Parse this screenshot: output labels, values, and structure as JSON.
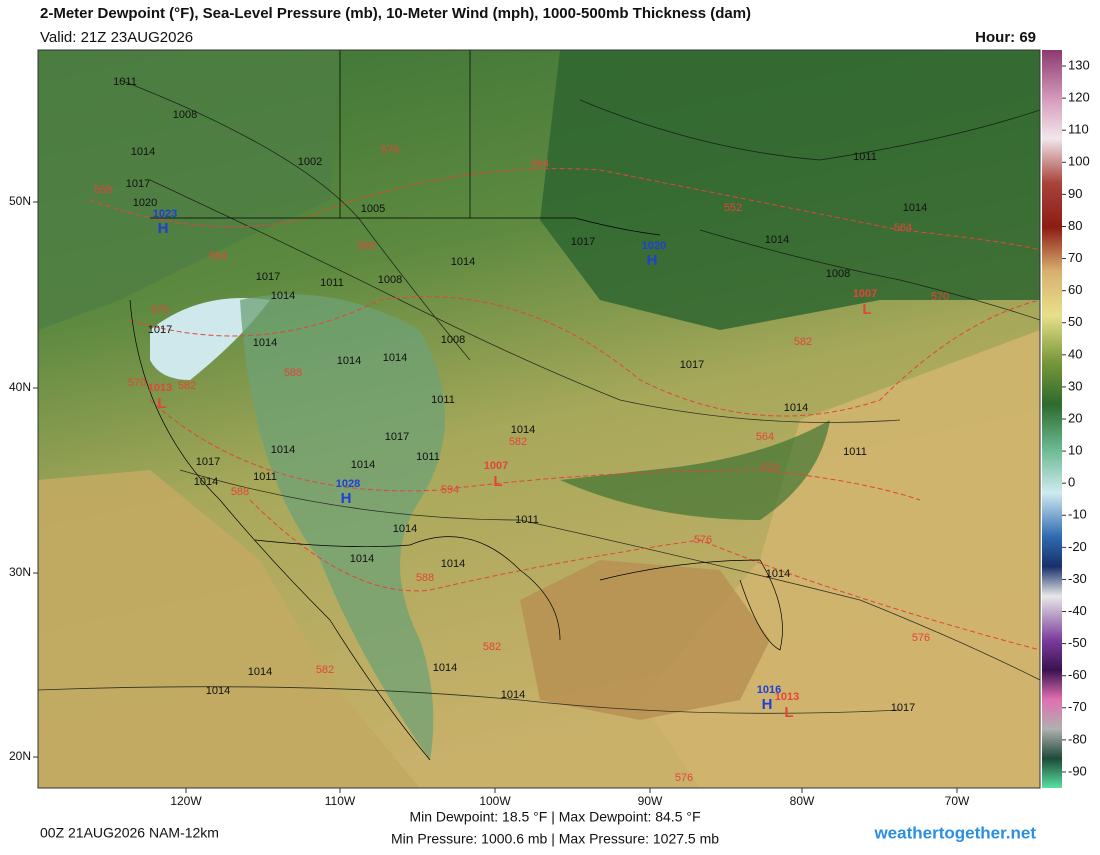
{
  "header": {
    "title": "2-Meter Dewpoint (°F), Sea-Level Pressure (mb), 10-Meter Wind (mph), 1000-500mb Thickness (dam)",
    "valid": "Valid: 21Z 23AUG2026",
    "hour": "Hour: 69"
  },
  "footer": {
    "run": "00Z 21AUG2026 NAM-12km",
    "dewpoint_stats": "Min Dewpoint:  18.5 °F | Max Dewpoint:  84.5 °F",
    "pressure_stats": "Min Pressure: 1000.6 mb | Max Pressure: 1027.5 mb",
    "site": "weathertogether.net"
  },
  "map": {
    "longitude_labels": [
      "120W",
      "110W",
      "100W",
      "90W",
      "80W",
      "70W"
    ],
    "latitude_labels": [
      "50N",
      "40N",
      "30N",
      "20N"
    ],
    "pressure_labels": [
      "1011",
      "1008",
      "1014",
      "1002",
      "1017",
      "1020",
      "1005",
      "1017",
      "1014",
      "1011",
      "1008",
      "1014",
      "1017",
      "1014",
      "1008",
      "1011",
      "1014",
      "1017",
      "1014",
      "1014",
      "1014",
      "1008",
      "1017",
      "1014",
      "1011",
      "1014",
      "1017",
      "1014",
      "1011",
      "1014",
      "1017",
      "1014",
      "1011",
      "1011",
      "1014",
      "1014",
      "1014",
      "1014",
      "1011",
      "1014",
      "1014",
      "1014",
      "1014",
      "1017"
    ],
    "thickness_labels": [
      "558",
      "576",
      "564",
      "552",
      "564",
      "564",
      "582",
      "570",
      "570",
      "588",
      "570",
      "582",
      "582",
      "564",
      "582",
      "570",
      "594",
      "588",
      "576",
      "588",
      "582",
      "582",
      "576",
      "576"
    ],
    "highs": [
      {
        "value": "1023",
        "symbol": "H"
      },
      {
        "value": "1020",
        "symbol": "H"
      },
      {
        "value": "1028",
        "symbol": "H"
      },
      {
        "value": "1016",
        "symbol": "H"
      }
    ],
    "lows": [
      {
        "value": "1007",
        "symbol": "L"
      },
      {
        "value": "1013",
        "symbol": "L"
      },
      {
        "value": "1007",
        "symbol": "L"
      },
      {
        "value": "1013",
        "symbol": "L"
      }
    ]
  },
  "colorbar": {
    "ticks": [
      130,
      120,
      110,
      100,
      90,
      80,
      70,
      60,
      50,
      40,
      30,
      20,
      10,
      0,
      -10,
      -20,
      -30,
      -40,
      -50,
      -60,
      -70,
      -80,
      -90
    ]
  }
}
